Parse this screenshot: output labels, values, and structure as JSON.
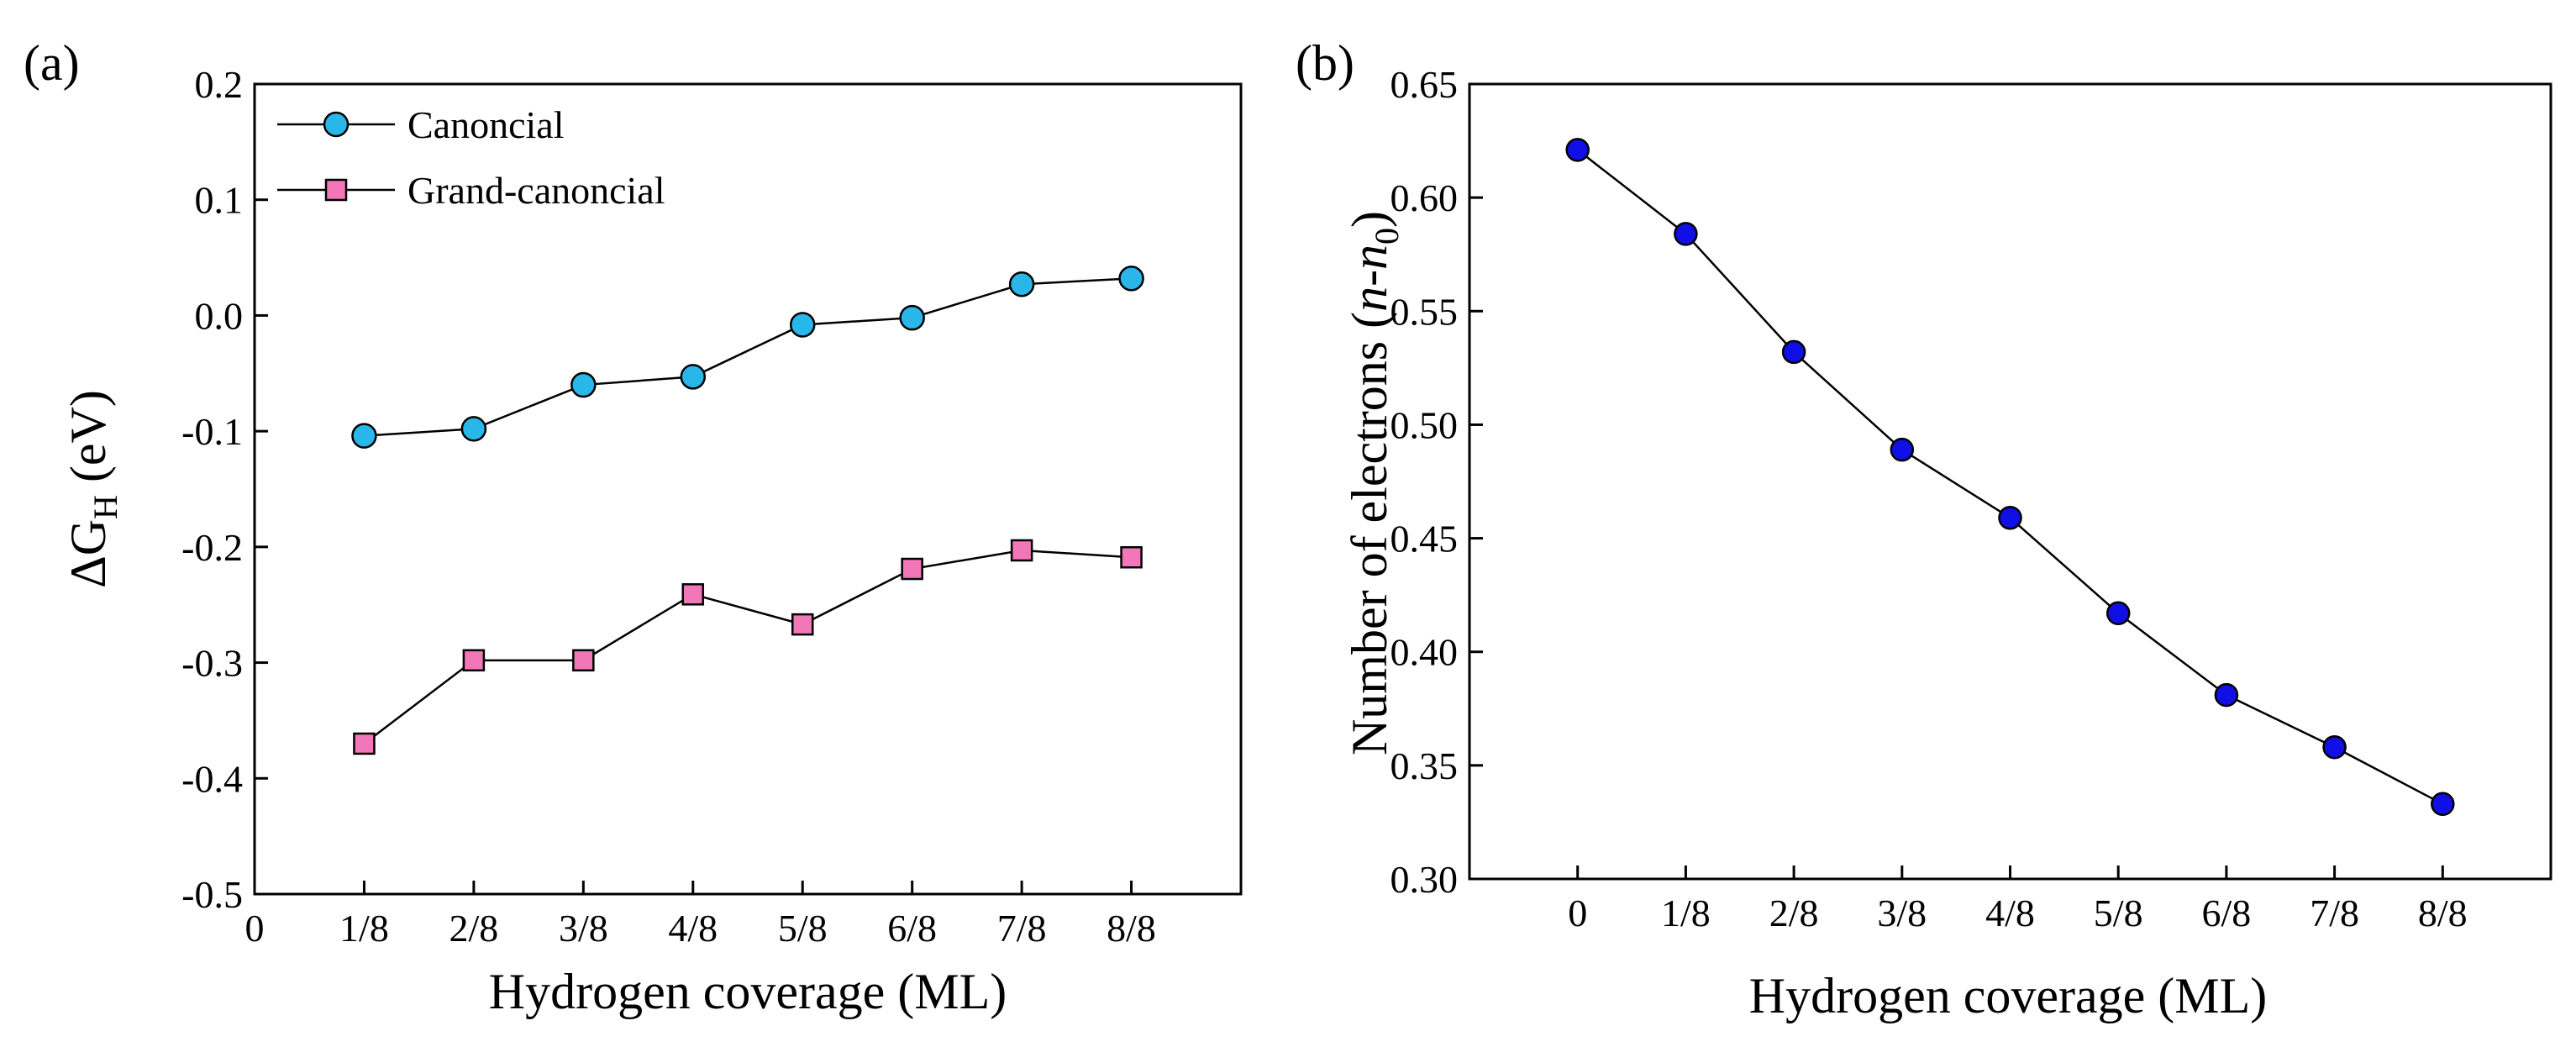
{
  "chart_data": [
    {
      "panel": "(a)",
      "type": "line",
      "xlabel": "Hydrogen coverage (ML)",
      "ylabel": {
        "prefix": "ΔG",
        "subscript": "H",
        "suffix": " (eV)"
      },
      "categories": [
        "1/8",
        "2/8",
        "3/8",
        "4/8",
        "5/8",
        "6/8",
        "7/8",
        "8/8"
      ],
      "x_ticks": [
        "0",
        "1/8",
        "2/8",
        "3/8",
        "4/8",
        "5/8",
        "6/8",
        "7/8",
        "8/8"
      ],
      "xlim": [
        0,
        9
      ],
      "ylim": [
        -0.5,
        0.2
      ],
      "y_ticks": [
        "-0.5",
        "-0.4",
        "-0.3",
        "-0.2",
        "-0.1",
        "0.0",
        "0.1",
        "0.2"
      ],
      "legend_position": "top-left",
      "series": [
        {
          "name": "Canoncial",
          "marker": "circle",
          "color": "#29b6e8",
          "values": [
            -0.104,
            -0.098,
            -0.06,
            -0.053,
            -0.008,
            -0.002,
            0.027,
            0.032
          ]
        },
        {
          "name": "Grand-canoncial",
          "marker": "square",
          "color": "#f277b8",
          "values": [
            -0.37,
            -0.298,
            -0.298,
            -0.241,
            -0.267,
            -0.219,
            -0.203,
            -0.209
          ]
        }
      ]
    },
    {
      "panel": "(b)",
      "type": "line",
      "xlabel": "Hydrogen coverage (ML)",
      "ylabel": {
        "prefix": "Number of electrons (",
        "italic1": "n",
        "dash": "-",
        "italic2": "n",
        "subscript": "0",
        "suffix": ")"
      },
      "categories": [
        "0",
        "1/8",
        "2/8",
        "3/8",
        "4/8",
        "5/8",
        "6/8",
        "7/8",
        "8/8"
      ],
      "xlim": [
        -1,
        9
      ],
      "ylim": [
        0.3,
        0.65
      ],
      "y_ticks": [
        "0.30",
        "0.35",
        "0.40",
        "0.45",
        "0.50",
        "0.55",
        "0.60",
        "0.65"
      ],
      "series": [
        {
          "name": "n-n0",
          "marker": "circle",
          "color": "#1010e6",
          "values": [
            0.621,
            0.584,
            0.532,
            0.489,
            0.459,
            0.417,
            0.381,
            0.358,
            0.333
          ]
        }
      ]
    }
  ]
}
